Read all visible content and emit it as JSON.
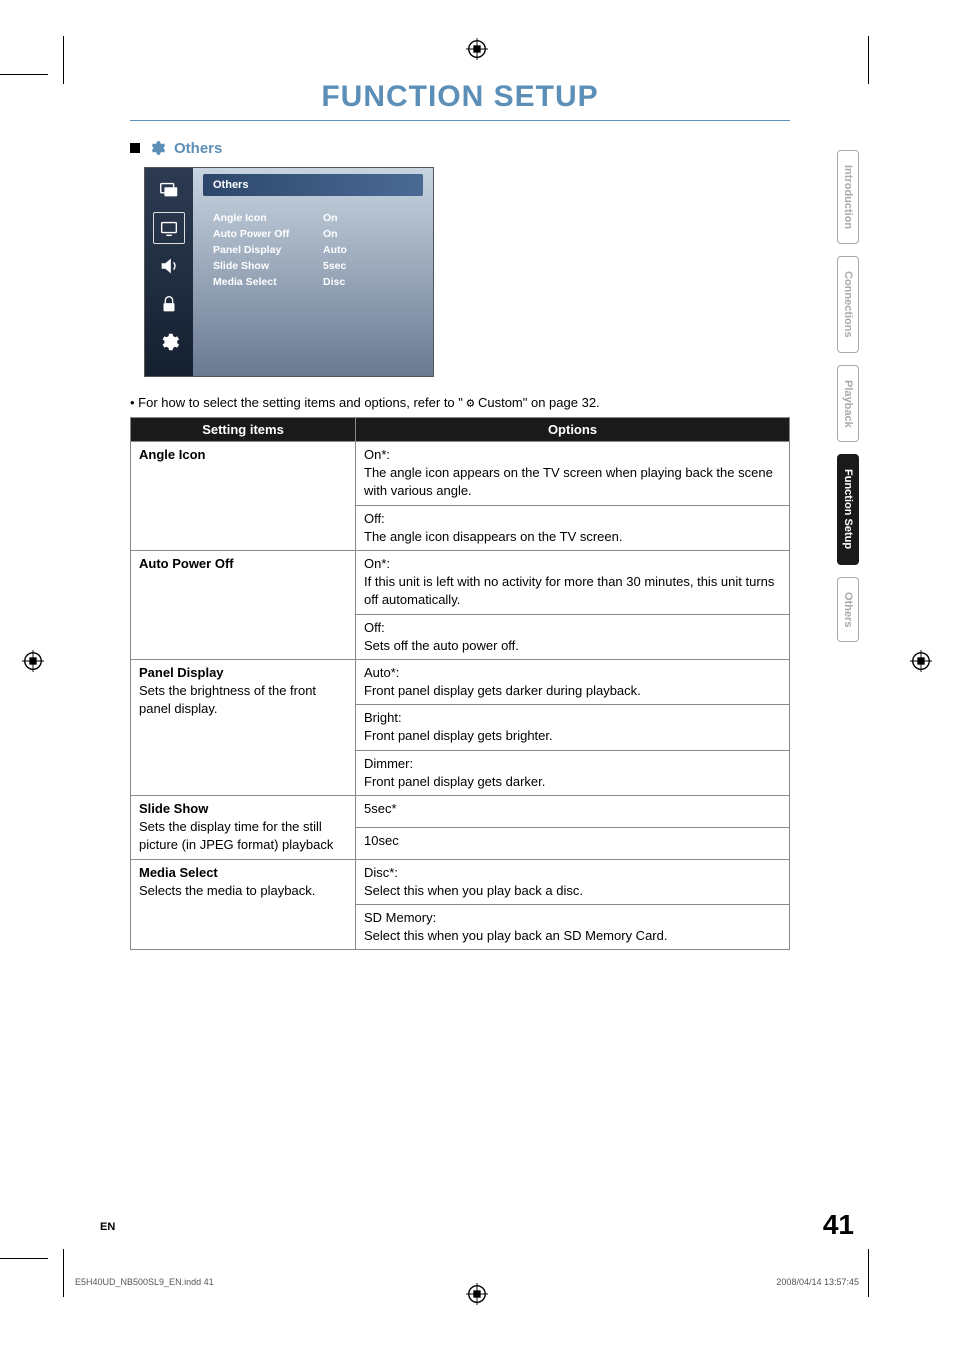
{
  "page": {
    "title": "FUNCTION SETUP",
    "title_color": "#5b8fb8",
    "number": "41",
    "lang": "EN"
  },
  "section": {
    "title": "Others"
  },
  "panel": {
    "header": "Others",
    "bg_gradient_top": "#c8d4e0",
    "bg_gradient_bottom": "#6a7a92",
    "left_bg_top": "#2d3b52",
    "left_bg_bottom": "#152030",
    "rows": [
      {
        "label": "Angle Icon",
        "value": "On"
      },
      {
        "label": "Auto Power Off",
        "value": "On"
      },
      {
        "label": "Panel Display",
        "value": "Auto"
      },
      {
        "label": "Slide Show",
        "value": "5sec"
      },
      {
        "label": "Media Select",
        "value": "Disc"
      }
    ]
  },
  "note": {
    "prefix": "• For how to select the setting items and options, refer to \"",
    "suffix": " Custom\" on page 32."
  },
  "table": {
    "header_bg": "#1a1a1a",
    "header_fg": "#ffffff",
    "border_color": "#888888",
    "headers": [
      "Setting items",
      "Options"
    ],
    "rows": [
      {
        "setting_name": "Angle Icon",
        "setting_desc": "",
        "options": [
          {
            "label": "On*:",
            "desc": "The angle icon appears on the TV screen when playing back the scene with various angle."
          },
          {
            "label": "Off:",
            "desc": "The angle icon disappears on the TV screen."
          }
        ]
      },
      {
        "setting_name": "Auto Power Off",
        "setting_desc": "",
        "options": [
          {
            "label": "On*:",
            "desc": "If this unit is left with no activity for more than 30 minutes, this unit turns off automatically."
          },
          {
            "label": "Off:",
            "desc": "Sets off the auto power off."
          }
        ]
      },
      {
        "setting_name": "Panel Display",
        "setting_desc": "Sets the brightness of the front panel display.",
        "options": [
          {
            "label": "Auto*:",
            "desc": "Front panel display gets darker during playback."
          },
          {
            "label": "Bright:",
            "desc": "Front panel display gets brighter."
          },
          {
            "label": "Dimmer:",
            "desc": "Front panel display gets darker."
          }
        ]
      },
      {
        "setting_name": "Slide Show",
        "setting_desc": "Sets the display time for the still picture (in JPEG format) playback",
        "options": [
          {
            "label": "5sec*",
            "desc": ""
          },
          {
            "label": "10sec",
            "desc": ""
          }
        ]
      },
      {
        "setting_name": "Media Select",
        "setting_desc": "Selects the media to playback.",
        "options": [
          {
            "label": "Disc*:",
            "desc": "Select this when you play back a disc."
          },
          {
            "label": "SD Memory:",
            "desc": "Select this when you play back an SD Memory Card."
          }
        ]
      }
    ]
  },
  "tabs": [
    {
      "label": "Introduction",
      "active": false
    },
    {
      "label": "Connections",
      "active": false
    },
    {
      "label": "Playback",
      "active": false
    },
    {
      "label": "Function Setup",
      "active": true
    },
    {
      "label": "Others",
      "active": false
    }
  ],
  "footer": {
    "left": "E5H40UD_NB500SL9_EN.indd   41",
    "right": "2008/04/14   13:57:45"
  }
}
